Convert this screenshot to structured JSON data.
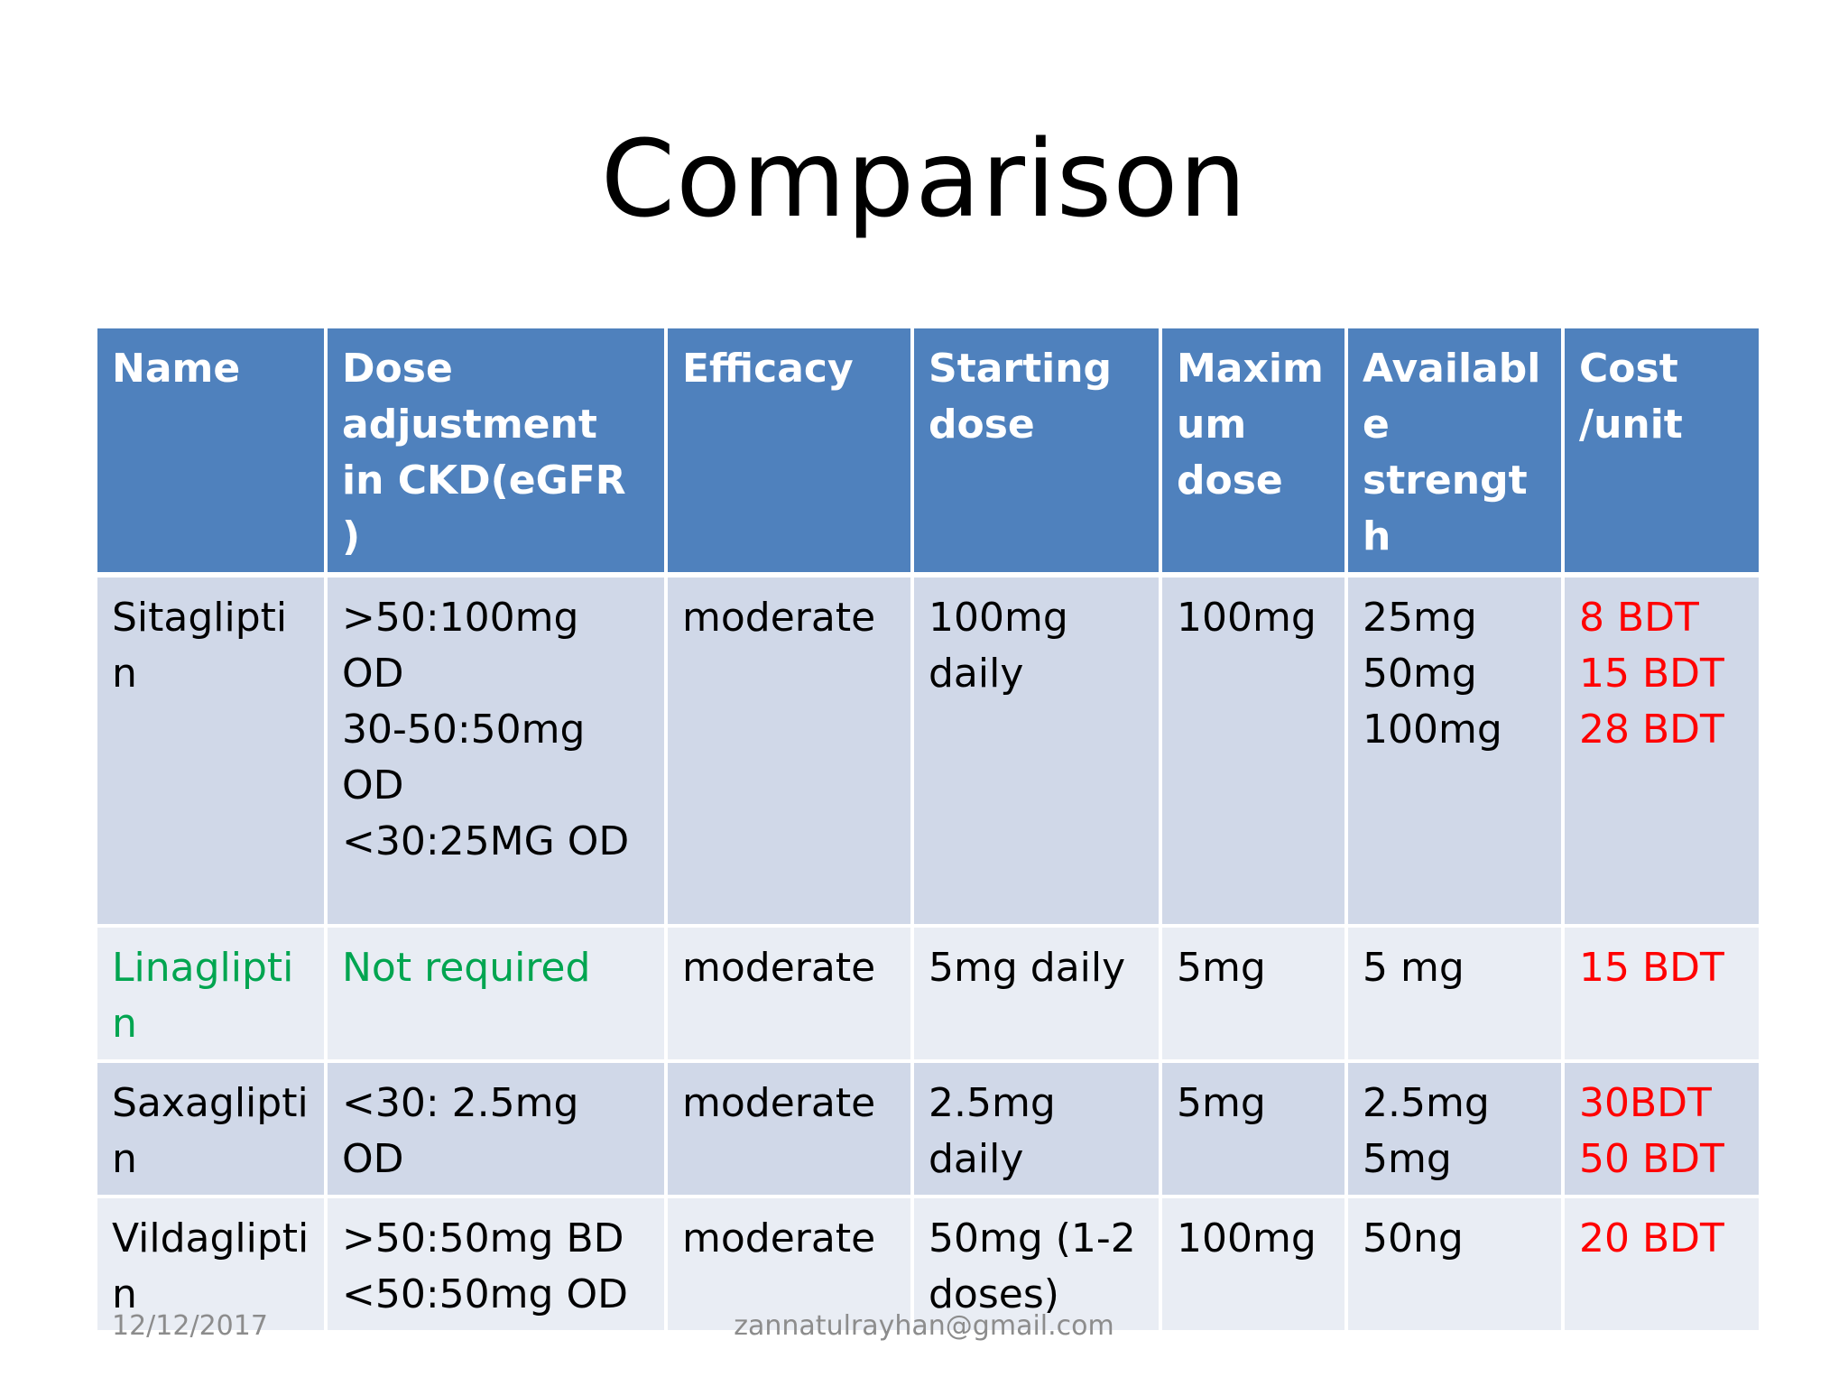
{
  "slide": {
    "title": "Comparison",
    "footer_date": "12/12/2017",
    "footer_email": "zannatulrayhan@gmail.com"
  },
  "colors": {
    "header_bg": "#4f81bd",
    "row_dark": "#d0d8e8",
    "row_light": "#e9edf4",
    "cost_text": "#ff0000",
    "highlight_text": "#00a550"
  },
  "table": {
    "headers": [
      "Name",
      "Dose adjustment in CKD(eGFR )",
      "Efficacy",
      "Starting dose",
      "Maxim um dose",
      "Available strength",
      "Cost /unit"
    ],
    "rows": [
      {
        "name": "Sitagliptin",
        "dose_adjustment": ">50:100mg OD\n30-50:50mg OD\n<30:25MG OD",
        "efficacy": "moderate",
        "starting_dose": "100mg daily",
        "maximum_dose": "100mg",
        "available_strength": "25mg\n50mg\n100mg",
        "cost": "8 BDT\n15 BDT\n28 BDT"
      },
      {
        "name": "Linaglipti n",
        "dose_adjustment": "Not required",
        "efficacy": "moderate",
        "starting_dose": "5mg daily",
        "maximum_dose": "5mg",
        "available_strength": "5 mg",
        "cost": "15 BDT"
      },
      {
        "name": "Saxaglipti n",
        "dose_adjustment": "<30: 2.5mg OD",
        "efficacy": "moderate",
        "starting_dose": "2.5mg daily",
        "maximum_dose": "5mg",
        "available_strength": "2.5mg\n5mg",
        "cost": "30BDT\n50 BDT"
      },
      {
        "name": "Vildaglipti n",
        "dose_adjustment": ">50:50mg BD\n<50:50mg OD",
        "efficacy": "moderate",
        "starting_dose": "50mg (1-2 doses)",
        "maximum_dose": "100mg",
        "available_strength": "50ng",
        "cost": "20 BDT"
      }
    ]
  }
}
